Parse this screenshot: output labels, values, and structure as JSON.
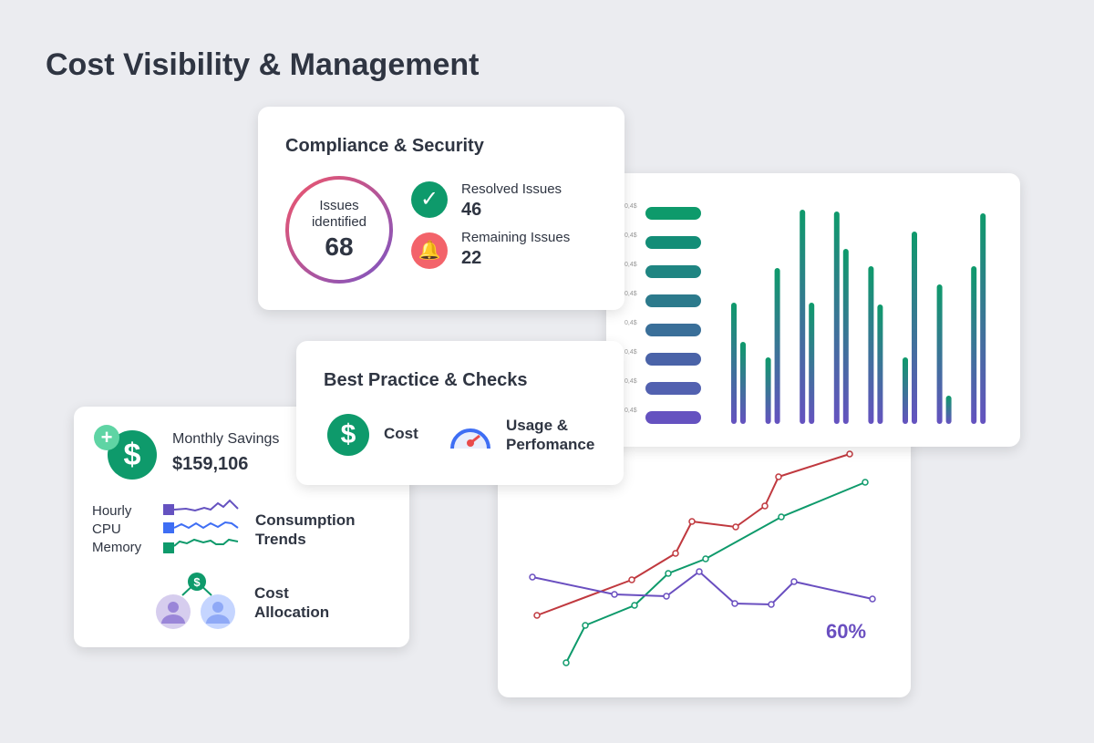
{
  "page_title": "Cost Visibility & Management",
  "compliance": {
    "title": "Compliance & Security",
    "ring_label_1": "Issues",
    "ring_label_2": "identified",
    "issues": "68",
    "resolved_label": "Resolved Issues",
    "resolved": "46",
    "remaining_label": "Remaining Issues",
    "remaining": "22"
  },
  "practice": {
    "title": "Best Practice & Checks",
    "cost": "Cost",
    "usage_1": "Usage &",
    "usage_2": "Perfomance"
  },
  "savings": {
    "label": "Monthly Savings",
    "value": "$159,106",
    "legend": [
      "Hourly",
      "CPU",
      "Memory"
    ],
    "trends_1": "Consumption",
    "trends_2": "Trends",
    "alloc_1": "Cost",
    "alloc_2": "Allocation"
  },
  "bars": {
    "labels": [
      "0,4$",
      "0,4$",
      "0,4$",
      "0,4$",
      "0,4$",
      "0,4$",
      "0,4$",
      "0,4$"
    ]
  },
  "line": {
    "percent": "60%"
  },
  "colors": {
    "green": "#0e9a6b",
    "purple": "#6b52c1",
    "red": "#c0393f",
    "accent": "#6a4fc0"
  }
}
